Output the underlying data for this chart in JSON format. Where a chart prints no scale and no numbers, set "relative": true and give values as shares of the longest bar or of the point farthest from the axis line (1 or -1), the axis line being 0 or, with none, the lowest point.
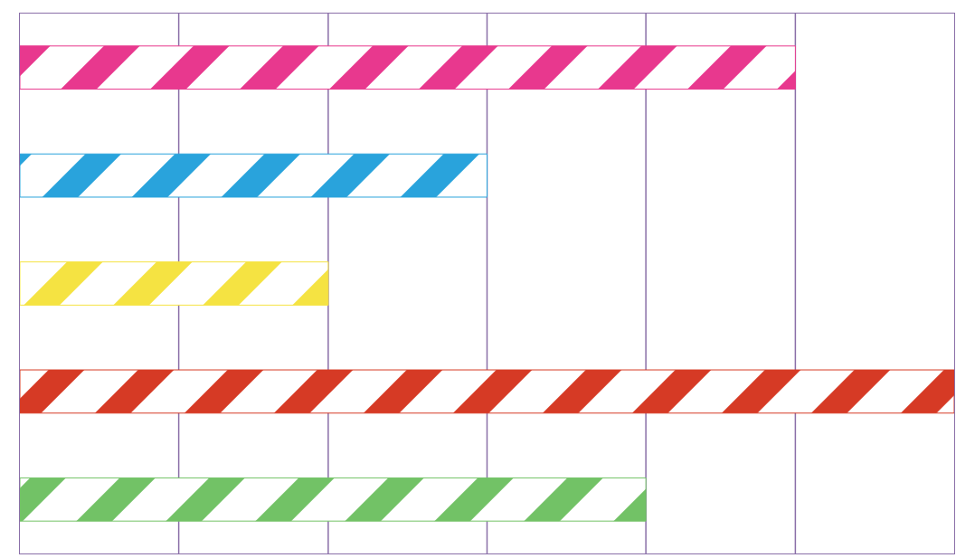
{
  "chart_data": {
    "type": "bar",
    "orientation": "horizontal",
    "relative": true,
    "categories": [
      null,
      null,
      null,
      null,
      null
    ],
    "values": [
      0.83,
      0.5,
      0.33,
      1,
      0.67
    ],
    "colors": [
      "#e8388e",
      "#29a3dc",
      "#f5e342",
      "#d63a25",
      "#72c266"
    ],
    "ref_lines": [
      {
        "axis": "x",
        "value": 0.17,
        "color": "#8a6fa8"
      },
      {
        "axis": "x",
        "value": 0.33,
        "color": "#8a6fa8"
      },
      {
        "axis": "x",
        "value": 0.5,
        "color": "#8a6fa8"
      },
      {
        "axis": "x",
        "value": 0.67,
        "color": "#8a6fa8"
      },
      {
        "axis": "x",
        "value": 0.83,
        "color": "#8a6fa8"
      }
    ]
  }
}
